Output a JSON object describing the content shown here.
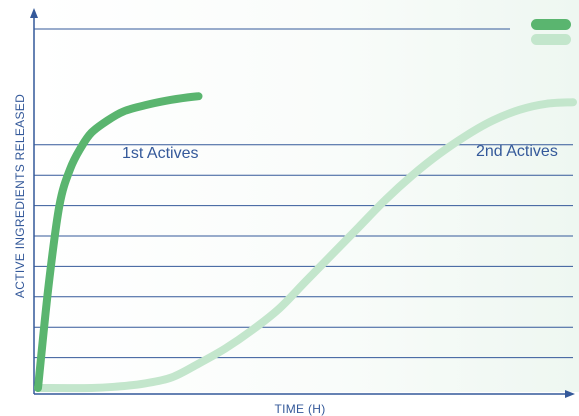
{
  "chart_data": {
    "type": "line",
    "title": "",
    "xlabel": "TIME (H)",
    "ylabel": "ACTIVE INGREDIENTS RELEASED",
    "xlim": [
      0,
      100
    ],
    "ylim": [
      0,
      100
    ],
    "grid": true,
    "gridlines_y": [
      10,
      20,
      30,
      40,
      50,
      60,
      70,
      80
    ],
    "legend": "top-right",
    "legend_swatches": [
      "#5ab56f",
      "#c3e6cc"
    ],
    "series": [
      {
        "name": "1st Actives",
        "color": "#5ab56f",
        "x": [
          0,
          2,
          4,
          6,
          8,
          10,
          13,
          16,
          20,
          24,
          28,
          30
        ],
        "y": [
          0,
          34,
          60,
          72,
          79,
          84,
          88,
          91,
          93,
          94.5,
          95.6,
          96
        ]
      },
      {
        "name": "2nd Actives",
        "color": "#c3e6cc",
        "x": [
          0,
          10,
          15,
          20,
          25,
          30,
          35,
          40,
          45,
          50,
          55,
          60,
          65,
          70,
          75,
          80,
          85,
          90,
          95,
          100
        ],
        "y": [
          0,
          0,
          0.5,
          1.5,
          3.5,
          8,
          13,
          19,
          26,
          35,
          44,
          53,
          62,
          70,
          77,
          83,
          88,
          91.5,
          93.5,
          94
        ]
      }
    ]
  }
}
